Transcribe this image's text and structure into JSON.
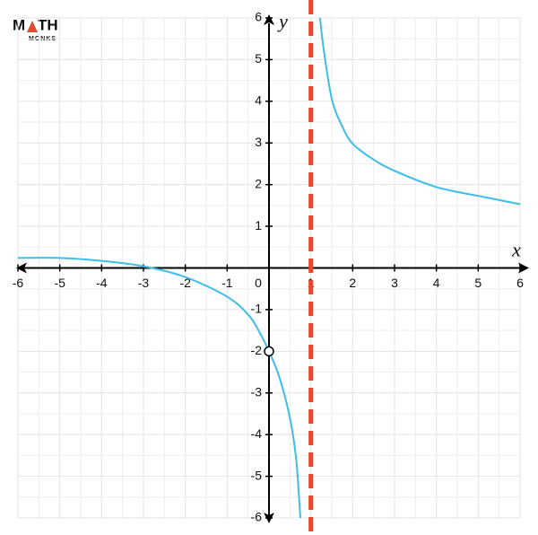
{
  "chart_data": {
    "type": "line",
    "logo": {
      "left": "M",
      "right": "TH",
      "sub": "MONKS"
    },
    "x_label": "x",
    "y_label": "y",
    "xlim": [
      -6,
      6
    ],
    "ylim": [
      -6,
      6
    ],
    "xticks": [
      -6,
      -5,
      -4,
      -3,
      -2,
      -1,
      0,
      1,
      2,
      3,
      4,
      5,
      6
    ],
    "yticks": [
      -6,
      -5,
      -4,
      -3,
      -2,
      -1,
      1,
      2,
      3,
      4,
      5,
      6
    ],
    "grid": true,
    "series": [
      {
        "color": "#3dbde8",
        "x": [
          -6,
          -5,
          -4,
          -3,
          -2,
          -1,
          -0.5,
          -0.25,
          0,
          0.25,
          0.5,
          0.65,
          0.75,
          null,
          1.22,
          1.3,
          1.5,
          1.75,
          2,
          2.5,
          3,
          4,
          5,
          6
        ],
        "values": [
          0.24,
          0.24,
          0.17,
          0.04,
          -0.22,
          -0.69,
          -1.12,
          -1.5,
          -2,
          -2.63,
          -3.6,
          -4.6,
          -6,
          null,
          6,
          5.3,
          4.06,
          3.4,
          2.98,
          2.6,
          2.33,
          1.94,
          1.73,
          1.53
        ]
      }
    ],
    "asymptote": {
      "x": 1,
      "color": "#e8472b"
    },
    "hole": {
      "x": 0,
      "y": -2
    }
  }
}
